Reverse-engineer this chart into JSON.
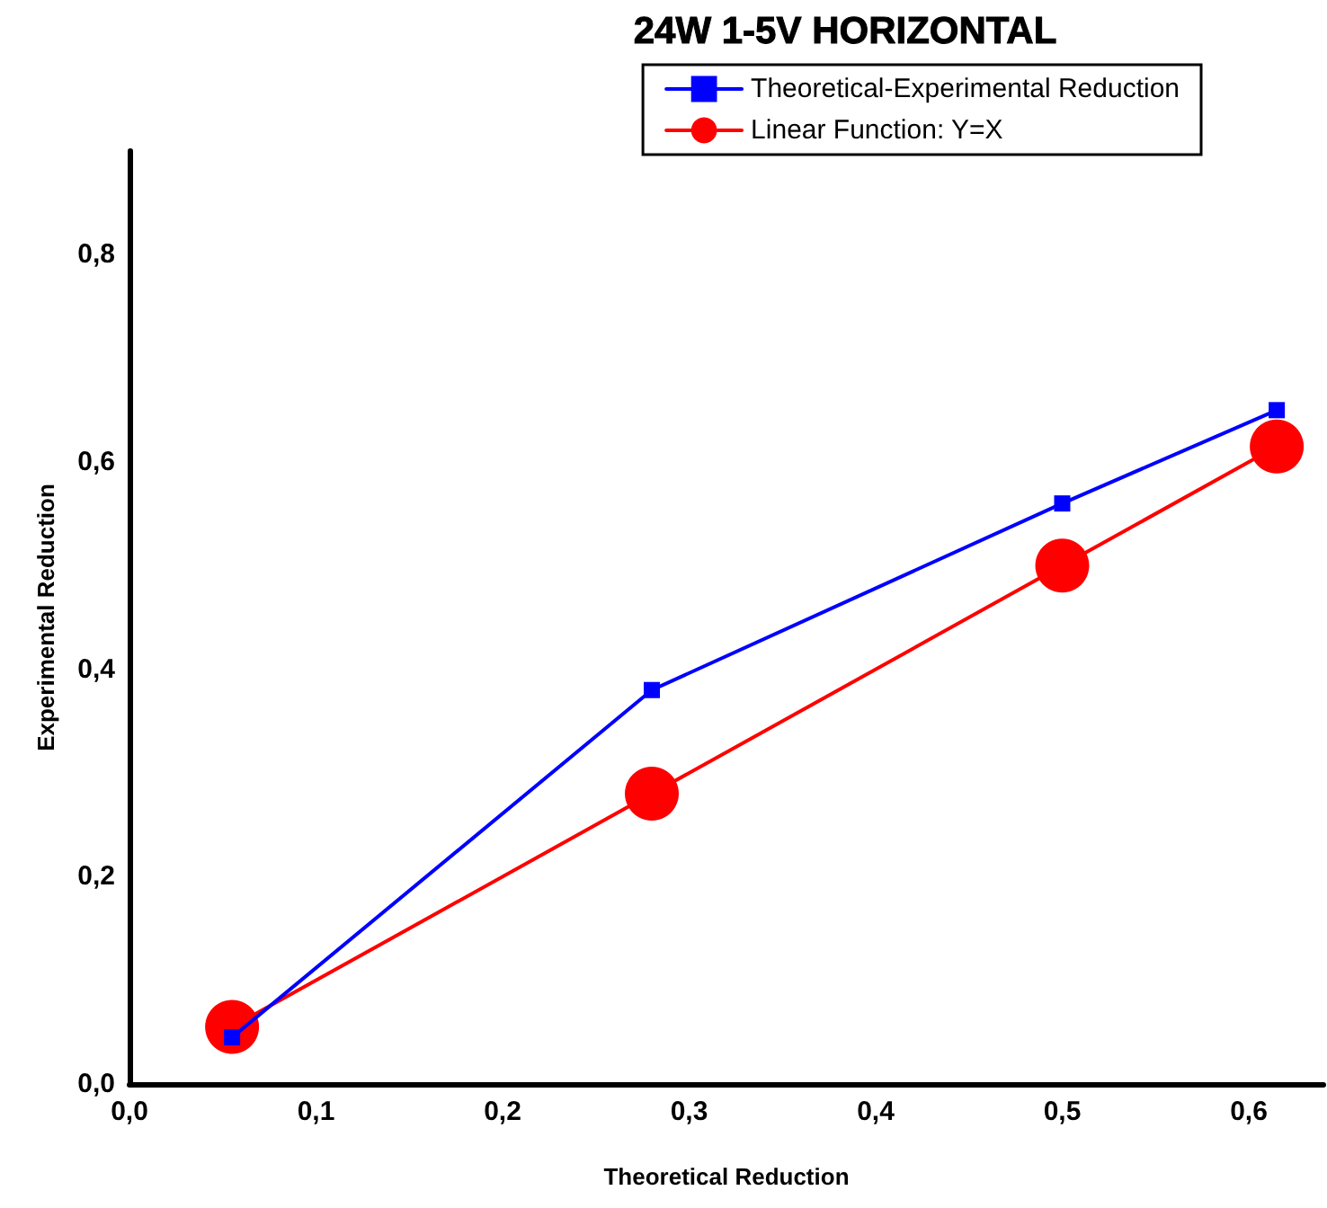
{
  "chart_data": {
    "type": "line",
    "title": "24W 1-5V HORIZONTAL",
    "xlabel": "Theoretical Reduction",
    "ylabel": "Experimental Reduction",
    "x": [
      0.055,
      0.28,
      0.5,
      0.615
    ],
    "series": [
      {
        "name": "Theoretical-Experimental Reduction",
        "color": "#0000ff",
        "marker": "square",
        "values": [
          0.045,
          0.38,
          0.56,
          0.65
        ]
      },
      {
        "name": "Linear Function: Y=X",
        "color": "#ff0000",
        "marker": "circle",
        "values": [
          0.055,
          0.28,
          0.5,
          0.615
        ]
      }
    ],
    "xlim": [
      0,
      0.64
    ],
    "xticks": [
      {
        "value": 0,
        "label": "0,0"
      },
      {
        "value": 0.1,
        "label": "0,1"
      },
      {
        "value": 0.2,
        "label": "0,2"
      },
      {
        "value": 0.3,
        "label": "0,3"
      },
      {
        "value": 0.4,
        "label": "0,4"
      },
      {
        "value": 0.5,
        "label": "0,5"
      },
      {
        "value": 0.6,
        "label": "0,6"
      }
    ],
    "ylim": [
      0,
      0.9
    ],
    "yticks": [
      {
        "value": 0,
        "label": "0,0"
      },
      {
        "value": 0.2,
        "label": "0,2"
      },
      {
        "value": 0.4,
        "label": "0,4"
      },
      {
        "value": 0.6,
        "label": "0,6"
      },
      {
        "value": 0.8,
        "label": "0,8"
      }
    ],
    "grid": false,
    "legend": "top right"
  }
}
